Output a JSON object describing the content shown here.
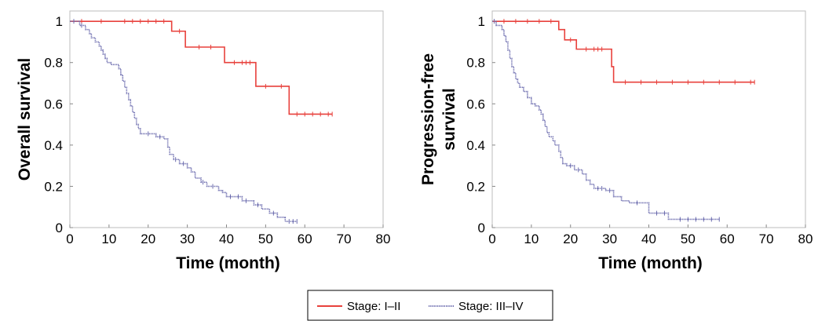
{
  "chart_data": [
    {
      "type": "line",
      "subtype": "kaplan-meier",
      "title": "",
      "xlabel": "Time (month)",
      "ylabel": "Overall survival",
      "xlim": [
        0,
        80
      ],
      "ylim": [
        0,
        1.05
      ],
      "xticks": [
        "0",
        "10",
        "20",
        "30",
        "40",
        "50",
        "60",
        "70",
        "80"
      ],
      "yticks": [
        "0",
        "0.2",
        "0.4",
        "0.6",
        "0.8",
        "1"
      ],
      "grid": false,
      "series": [
        {
          "name": "Stage: I–II",
          "color": "#e8413c",
          "steps": [
            [
              0,
              1.0
            ],
            [
              26,
              0.952
            ],
            [
              29.5,
              0.875
            ],
            [
              39.5,
              0.8
            ],
            [
              47.5,
              0.685
            ],
            [
              56,
              0.55
            ],
            [
              67,
              0.55
            ]
          ],
          "censored": [
            [
              3,
              1.0
            ],
            [
              8,
              1.0
            ],
            [
              14,
              1.0
            ],
            [
              16,
              1.0
            ],
            [
              18,
              1.0
            ],
            [
              20,
              1.0
            ],
            [
              22,
              1.0
            ],
            [
              24,
              1.0
            ],
            [
              28,
              0.952
            ],
            [
              33,
              0.875
            ],
            [
              36,
              0.875
            ],
            [
              42,
              0.8
            ],
            [
              44,
              0.8
            ],
            [
              45,
              0.8
            ],
            [
              46,
              0.8
            ],
            [
              50,
              0.685
            ],
            [
              54,
              0.685
            ],
            [
              58,
              0.55
            ],
            [
              60,
              0.55
            ],
            [
              62,
              0.55
            ],
            [
              64,
              0.55
            ],
            [
              66,
              0.55
            ],
            [
              67,
              0.55
            ]
          ]
        },
        {
          "name": "Stage: III–IV",
          "color": "#6f6fb0",
          "steps": [
            [
              0,
              1.0
            ],
            [
              2.5,
              0.98
            ],
            [
              4,
              0.96
            ],
            [
              5,
              0.94
            ],
            [
              5.5,
              0.92
            ],
            [
              6.5,
              0.9
            ],
            [
              7.5,
              0.88
            ],
            [
              8,
              0.86
            ],
            [
              8.5,
              0.84
            ],
            [
              9,
              0.82
            ],
            [
              9.5,
              0.8
            ],
            [
              10.5,
              0.79
            ],
            [
              12.5,
              0.77
            ],
            [
              13,
              0.74
            ],
            [
              13.5,
              0.71
            ],
            [
              14,
              0.68
            ],
            [
              14.5,
              0.65
            ],
            [
              15,
              0.62
            ],
            [
              15.5,
              0.59
            ],
            [
              16,
              0.56
            ],
            [
              16.5,
              0.53
            ],
            [
              17,
              0.5
            ],
            [
              17.5,
              0.48
            ],
            [
              18,
              0.455
            ],
            [
              22,
              0.44
            ],
            [
              24,
              0.43
            ],
            [
              25,
              0.39
            ],
            [
              25.5,
              0.355
            ],
            [
              26.5,
              0.33
            ],
            [
              28,
              0.31
            ],
            [
              30,
              0.29
            ],
            [
              31,
              0.27
            ],
            [
              32,
              0.24
            ],
            [
              33.5,
              0.22
            ],
            [
              35,
              0.2
            ],
            [
              38,
              0.18
            ],
            [
              39,
              0.17
            ],
            [
              40,
              0.15
            ],
            [
              44,
              0.13
            ],
            [
              47,
              0.11
            ],
            [
              49,
              0.09
            ],
            [
              51,
              0.07
            ],
            [
              53,
              0.05
            ],
            [
              55,
              0.03
            ],
            [
              58,
              0.03
            ]
          ],
          "censored": [
            [
              1,
              1.0
            ],
            [
              3,
              0.98
            ],
            [
              20,
              0.455
            ],
            [
              23,
              0.44
            ],
            [
              27,
              0.33
            ],
            [
              29,
              0.31
            ],
            [
              34,
              0.22
            ],
            [
              36.5,
              0.2
            ],
            [
              41,
              0.15
            ],
            [
              43,
              0.15
            ],
            [
              45,
              0.13
            ],
            [
              48,
              0.11
            ],
            [
              52,
              0.07
            ],
            [
              56,
              0.03
            ],
            [
              57,
              0.03
            ],
            [
              58,
              0.03
            ]
          ]
        }
      ]
    },
    {
      "type": "line",
      "subtype": "kaplan-meier",
      "title": "",
      "xlabel": "Time (month)",
      "ylabel": "Progression-free survival",
      "xlim": [
        0,
        80
      ],
      "ylim": [
        0,
        1.05
      ],
      "xticks": [
        "0",
        "10",
        "20",
        "30",
        "40",
        "50",
        "60",
        "70",
        "80"
      ],
      "yticks": [
        "0",
        "0.2",
        "0.4",
        "0.6",
        "0.8",
        "1"
      ],
      "grid": false,
      "series": [
        {
          "name": "Stage: I–II",
          "color": "#e8413c",
          "steps": [
            [
              0,
              1.0
            ],
            [
              17,
              0.96
            ],
            [
              18.5,
              0.91
            ],
            [
              21.5,
              0.865
            ],
            [
              30.5,
              0.78
            ],
            [
              31,
              0.705
            ],
            [
              67,
              0.705
            ]
          ],
          "censored": [
            [
              3,
              1.0
            ],
            [
              6,
              1.0
            ],
            [
              9,
              1.0
            ],
            [
              12,
              1.0
            ],
            [
              15,
              1.0
            ],
            [
              20,
              0.91
            ],
            [
              24,
              0.865
            ],
            [
              26,
              0.865
            ],
            [
              27,
              0.865
            ],
            [
              28,
              0.865
            ],
            [
              34,
              0.705
            ],
            [
              38,
              0.705
            ],
            [
              42,
              0.705
            ],
            [
              46,
              0.705
            ],
            [
              50,
              0.705
            ],
            [
              54,
              0.705
            ],
            [
              58,
              0.705
            ],
            [
              62,
              0.705
            ],
            [
              66,
              0.705
            ],
            [
              67,
              0.705
            ]
          ]
        },
        {
          "name": "Stage: III–IV",
          "color": "#6f6fb0",
          "steps": [
            [
              0,
              1.0
            ],
            [
              1,
              0.98
            ],
            [
              2.5,
              0.96
            ],
            [
              3,
              0.93
            ],
            [
              3.5,
              0.9
            ],
            [
              4,
              0.86
            ],
            [
              4.5,
              0.82
            ],
            [
              5,
              0.78
            ],
            [
              5.5,
              0.75
            ],
            [
              6,
              0.72
            ],
            [
              6.5,
              0.7
            ],
            [
              7,
              0.68
            ],
            [
              8,
              0.66
            ],
            [
              9,
              0.63
            ],
            [
              10,
              0.6
            ],
            [
              11,
              0.59
            ],
            [
              12,
              0.57
            ],
            [
              12.5,
              0.55
            ],
            [
              13,
              0.52
            ],
            [
              13.5,
              0.49
            ],
            [
              14,
              0.46
            ],
            [
              14.5,
              0.44
            ],
            [
              15.5,
              0.42
            ],
            [
              16,
              0.4
            ],
            [
              17,
              0.37
            ],
            [
              17.5,
              0.34
            ],
            [
              18,
              0.31
            ],
            [
              19,
              0.3
            ],
            [
              21,
              0.28
            ],
            [
              23,
              0.26
            ],
            [
              24,
              0.23
            ],
            [
              25,
              0.21
            ],
            [
              26,
              0.19
            ],
            [
              29,
              0.18
            ],
            [
              31,
              0.15
            ],
            [
              33,
              0.13
            ],
            [
              35,
              0.12
            ],
            [
              40,
              0.07
            ],
            [
              45,
              0.04
            ],
            [
              58,
              0.04
            ]
          ],
          "censored": [
            [
              0.5,
              1.0
            ],
            [
              20,
              0.3
            ],
            [
              22,
              0.28
            ],
            [
              27,
              0.19
            ],
            [
              28,
              0.19
            ],
            [
              30,
              0.18
            ],
            [
              37,
              0.12
            ],
            [
              42,
              0.07
            ],
            [
              44,
              0.07
            ],
            [
              48,
              0.04
            ],
            [
              50,
              0.04
            ],
            [
              52,
              0.04
            ],
            [
              54,
              0.04
            ],
            [
              56,
              0.04
            ],
            [
              58,
              0.04
            ]
          ]
        }
      ]
    }
  ],
  "legend": {
    "placement": "bottom-center",
    "items": [
      {
        "label": "Stage: I–II",
        "color": "#e8413c"
      },
      {
        "label": "Stage: III–IV",
        "color": "#6f6fb0"
      }
    ]
  }
}
